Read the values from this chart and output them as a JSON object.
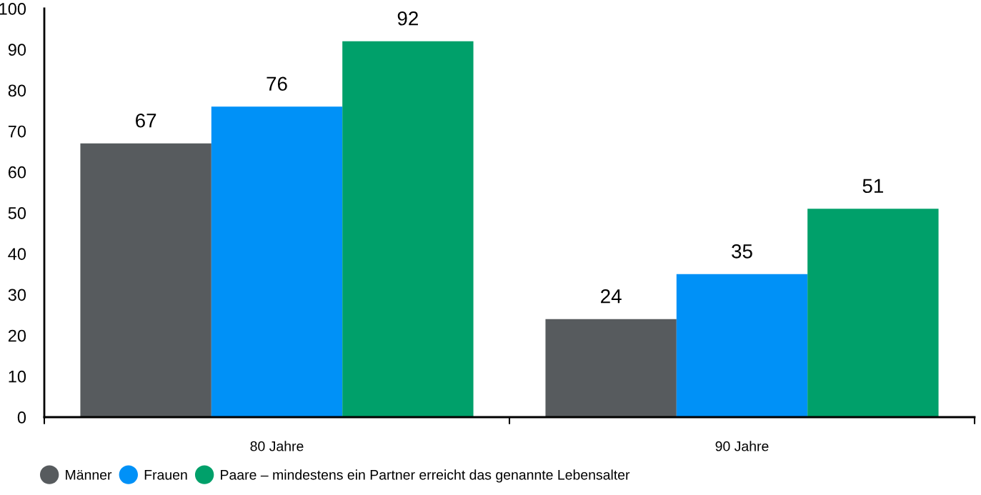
{
  "chart_data": {
    "type": "bar",
    "categories": [
      "80 Jahre",
      "90 Jahre"
    ],
    "series": [
      {
        "name": "Männer",
        "color": "#575b5e",
        "values": [
          67,
          24
        ]
      },
      {
        "name": "Frauen",
        "color": "#0091f7",
        "values": [
          76,
          35
        ]
      },
      {
        "name": "Paare – mindestens ein Partner erreicht das genannte Lebensalter",
        "color": "#00a06a",
        "values": [
          92,
          51
        ]
      }
    ],
    "ylim": [
      0,
      100
    ],
    "yticks": [
      0,
      10,
      20,
      30,
      40,
      50,
      60,
      70,
      80,
      90,
      100
    ],
    "data_labels": true,
    "legend": "bottom left",
    "marker": "circle"
  }
}
